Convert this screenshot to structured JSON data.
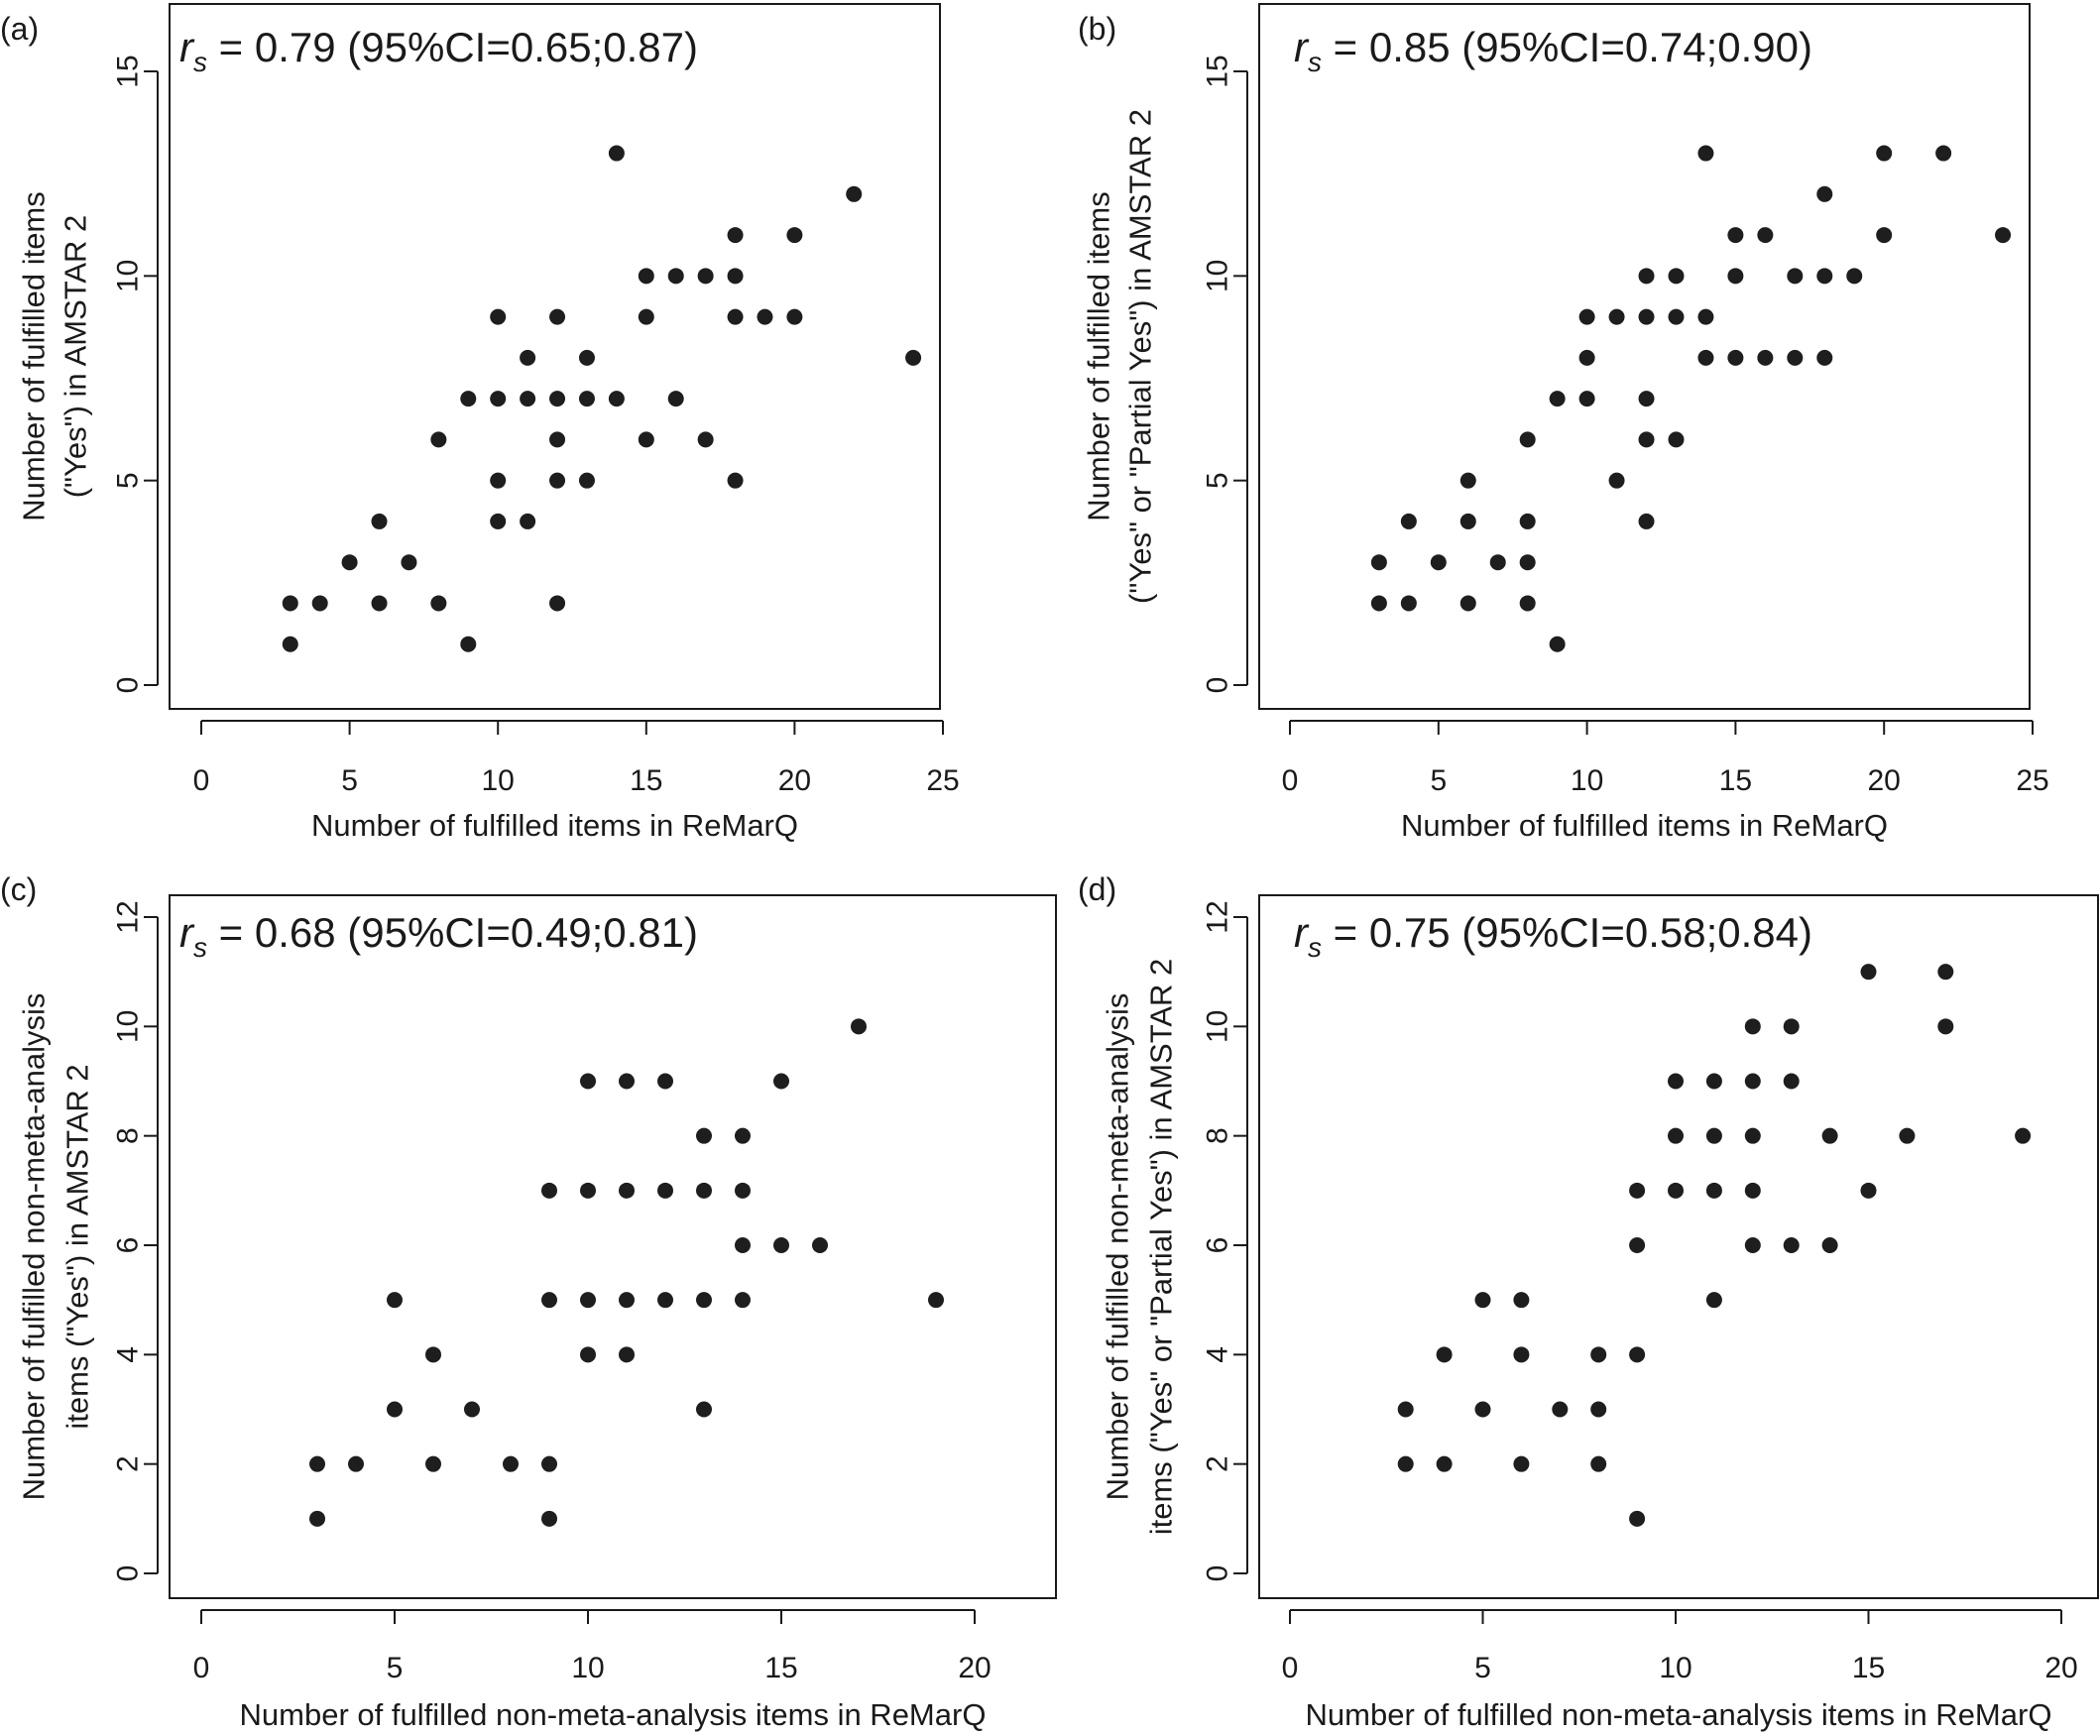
{
  "figure": {
    "panels": [
      {
        "tag": "(a)",
        "rs_symbol": "r",
        "rs_sub": "s",
        "rs_text": " = 0.79 (95%CI=0.65;0.87)"
      },
      {
        "tag": "(b)",
        "rs_symbol": "r",
        "rs_sub": "s",
        "rs_text": " = 0.85 (95%CI=0.74;0.90)"
      },
      {
        "tag": "(c)",
        "rs_symbol": "r",
        "rs_sub": "s",
        "rs_text": " = 0.68 (95%CI=0.49;0.81)"
      },
      {
        "tag": "(d)",
        "rs_symbol": "r",
        "rs_sub": "s",
        "rs_text": " = 0.75 (95%CI=0.58;0.84)"
      }
    ]
  },
  "chart_data": [
    {
      "type": "scatter",
      "panel": "(a)",
      "annotation": "rs = 0.79 (95%CI=0.65;0.87)",
      "xlabel": "Number of fulfilled items in ReMarQ",
      "ylabel": [
        "Number of fulfilled items",
        "(\"Yes\") in AMSTAR 2"
      ],
      "xlim": [
        0,
        25
      ],
      "ylim": [
        0,
        15
      ],
      "xticks": [
        0,
        5,
        10,
        15,
        20,
        25
      ],
      "yticks": [
        0,
        5,
        10,
        15
      ],
      "grid": false,
      "marker_color": "#1e1e1e",
      "points": [
        [
          3,
          1
        ],
        [
          3,
          2
        ],
        [
          4,
          2
        ],
        [
          5,
          3
        ],
        [
          6,
          4
        ],
        [
          6,
          2
        ],
        [
          7,
          3
        ],
        [
          8,
          2
        ],
        [
          8,
          6
        ],
        [
          9,
          1
        ],
        [
          9,
          7
        ],
        [
          10,
          9
        ],
        [
          10,
          7
        ],
        [
          10,
          5
        ],
        [
          10,
          4
        ],
        [
          11,
          8
        ],
        [
          11,
          7
        ],
        [
          11,
          4
        ],
        [
          12,
          9
        ],
        [
          12,
          7
        ],
        [
          12,
          6
        ],
        [
          12,
          5
        ],
        [
          12,
          2
        ],
        [
          13,
          8
        ],
        [
          13,
          7
        ],
        [
          13,
          5
        ],
        [
          14,
          13
        ],
        [
          14,
          7
        ],
        [
          15,
          10
        ],
        [
          15,
          9
        ],
        [
          15,
          6
        ],
        [
          16,
          10
        ],
        [
          16,
          7
        ],
        [
          17,
          10
        ],
        [
          17,
          6
        ],
        [
          18,
          11
        ],
        [
          18,
          10
        ],
        [
          18,
          9
        ],
        [
          18,
          5
        ],
        [
          19,
          9
        ],
        [
          20,
          11
        ],
        [
          20,
          9
        ],
        [
          22,
          12
        ],
        [
          24,
          8
        ]
      ]
    },
    {
      "type": "scatter",
      "panel": "(b)",
      "annotation": "rs = 0.85 (95%CI=0.74;0.90)",
      "xlabel": "Number of fulfilled items in ReMarQ",
      "ylabel": [
        "Number of fulfilled items",
        "(\"Yes\" or \"Partial Yes\") in AMSTAR 2"
      ],
      "xlim": [
        0,
        25
      ],
      "ylim": [
        0,
        15
      ],
      "xticks": [
        0,
        5,
        10,
        15,
        20,
        25
      ],
      "yticks": [
        0,
        5,
        10,
        15
      ],
      "grid": false,
      "marker_color": "#1e1e1e",
      "points": [
        [
          3,
          3
        ],
        [
          3,
          2
        ],
        [
          4,
          4
        ],
        [
          4,
          2
        ],
        [
          5,
          3
        ],
        [
          6,
          5
        ],
        [
          6,
          4
        ],
        [
          6,
          2
        ],
        [
          7,
          3
        ],
        [
          8,
          6
        ],
        [
          8,
          4
        ],
        [
          8,
          3
        ],
        [
          8,
          2
        ],
        [
          9,
          7
        ],
        [
          9,
          1
        ],
        [
          10,
          9
        ],
        [
          10,
          8
        ],
        [
          10,
          7
        ],
        [
          11,
          9
        ],
        [
          11,
          5
        ],
        [
          12,
          10
        ],
        [
          12,
          9
        ],
        [
          12,
          7
        ],
        [
          12,
          6
        ],
        [
          12,
          4
        ],
        [
          13,
          10
        ],
        [
          13,
          9
        ],
        [
          13,
          6
        ],
        [
          14,
          13
        ],
        [
          14,
          9
        ],
        [
          14,
          8
        ],
        [
          15,
          11
        ],
        [
          15,
          10
        ],
        [
          15,
          8
        ],
        [
          16,
          11
        ],
        [
          16,
          8
        ],
        [
          17,
          10
        ],
        [
          17,
          8
        ],
        [
          18,
          12
        ],
        [
          18,
          10
        ],
        [
          18,
          8
        ],
        [
          19,
          10
        ],
        [
          20,
          13
        ],
        [
          20,
          11
        ],
        [
          22,
          13
        ],
        [
          24,
          11
        ]
      ]
    },
    {
      "type": "scatter",
      "panel": "(c)",
      "annotation": "rs = 0.68 (95%CI=0.49;0.81)",
      "xlabel": "Number of fulfilled non-meta-analysis items in ReMarQ",
      "ylabel": [
        "Number of fulfilled non-meta-analysis",
        "items (\"Yes\") in AMSTAR 2"
      ],
      "xlim": [
        0,
        20
      ],
      "ylim": [
        0,
        12
      ],
      "xticks": [
        0,
        5,
        10,
        15,
        20
      ],
      "yticks": [
        0,
        2,
        4,
        6,
        8,
        10,
        12
      ],
      "grid": false,
      "marker_color": "#1e1e1e",
      "points": [
        [
          3,
          2
        ],
        [
          3,
          1
        ],
        [
          4,
          2
        ],
        [
          5,
          5
        ],
        [
          5,
          3
        ],
        [
          6,
          4
        ],
        [
          6,
          2
        ],
        [
          7,
          3
        ],
        [
          8,
          2
        ],
        [
          9,
          7
        ],
        [
          9,
          5
        ],
        [
          9,
          2
        ],
        [
          9,
          1
        ],
        [
          10,
          9
        ],
        [
          10,
          7
        ],
        [
          10,
          5
        ],
        [
          10,
          4
        ],
        [
          11,
          9
        ],
        [
          11,
          7
        ],
        [
          11,
          5
        ],
        [
          11,
          4
        ],
        [
          12,
          9
        ],
        [
          12,
          7
        ],
        [
          12,
          5
        ],
        [
          13,
          8
        ],
        [
          13,
          7
        ],
        [
          13,
          5
        ],
        [
          13,
          3
        ],
        [
          14,
          8
        ],
        [
          14,
          7
        ],
        [
          14,
          6
        ],
        [
          14,
          5
        ],
        [
          15,
          9
        ],
        [
          15,
          6
        ],
        [
          16,
          6
        ],
        [
          17,
          10
        ],
        [
          19,
          5
        ]
      ]
    },
    {
      "type": "scatter",
      "panel": "(d)",
      "annotation": "rs = 0.75 (95%CI=0.58;0.84)",
      "xlabel": "Number of fulfilled non-meta-analysis items in ReMarQ",
      "ylabel": [
        "Number of fulfilled non-meta-analysis",
        "items (\"Yes\" or \"Partial Yes\") in AMSTAR 2"
      ],
      "xlim": [
        0,
        20
      ],
      "ylim": [
        0,
        12
      ],
      "xticks": [
        0,
        5,
        10,
        15,
        20
      ],
      "yticks": [
        0,
        2,
        4,
        6,
        8,
        10,
        12
      ],
      "grid": false,
      "marker_color": "#1e1e1e",
      "points": [
        [
          3,
          3
        ],
        [
          3,
          2
        ],
        [
          4,
          4
        ],
        [
          4,
          2
        ],
        [
          5,
          5
        ],
        [
          5,
          3
        ],
        [
          6,
          5
        ],
        [
          6,
          4
        ],
        [
          6,
          2
        ],
        [
          7,
          3
        ],
        [
          8,
          4
        ],
        [
          8,
          3
        ],
        [
          8,
          2
        ],
        [
          9,
          7
        ],
        [
          9,
          6
        ],
        [
          9,
          4
        ],
        [
          9,
          1
        ],
        [
          10,
          9
        ],
        [
          10,
          8
        ],
        [
          10,
          7
        ],
        [
          11,
          9
        ],
        [
          11,
          8
        ],
        [
          11,
          7
        ],
        [
          11,
          5
        ],
        [
          12,
          10
        ],
        [
          12,
          9
        ],
        [
          12,
          8
        ],
        [
          12,
          7
        ],
        [
          12,
          6
        ],
        [
          13,
          10
        ],
        [
          13,
          9
        ],
        [
          13,
          6
        ],
        [
          14,
          8
        ],
        [
          14,
          6
        ],
        [
          15,
          11
        ],
        [
          15,
          7
        ],
        [
          16,
          8
        ],
        [
          17,
          11
        ],
        [
          17,
          10
        ],
        [
          19,
          8
        ]
      ]
    }
  ]
}
